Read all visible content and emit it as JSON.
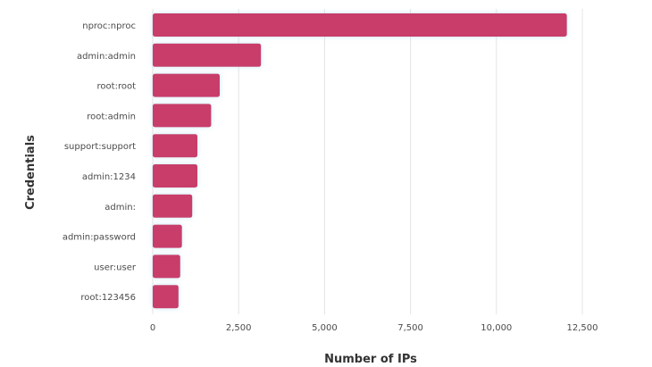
{
  "chart_data": {
    "type": "bar",
    "orientation": "horizontal",
    "categories": [
      "nproc:nproc",
      "admin:admin",
      "root:root",
      "root:admin",
      "support:support",
      "admin:1234",
      "admin:",
      "admin:password",
      "user:user",
      "root:123456"
    ],
    "values": [
      12050,
      3150,
      1950,
      1700,
      1300,
      1300,
      1150,
      850,
      800,
      750
    ],
    "xlabel": "Number of IPs",
    "ylabel": "Credentials",
    "xlim": [
      0,
      12500
    ],
    "xticks": [
      0,
      2500,
      5000,
      7500,
      10000,
      12500
    ],
    "xtick_labels": [
      "0",
      "2,500",
      "5,000",
      "7,500",
      "10,000",
      "12,500"
    ],
    "grid": "vertical",
    "legend": "none",
    "bar_color": "#c83e6b"
  }
}
